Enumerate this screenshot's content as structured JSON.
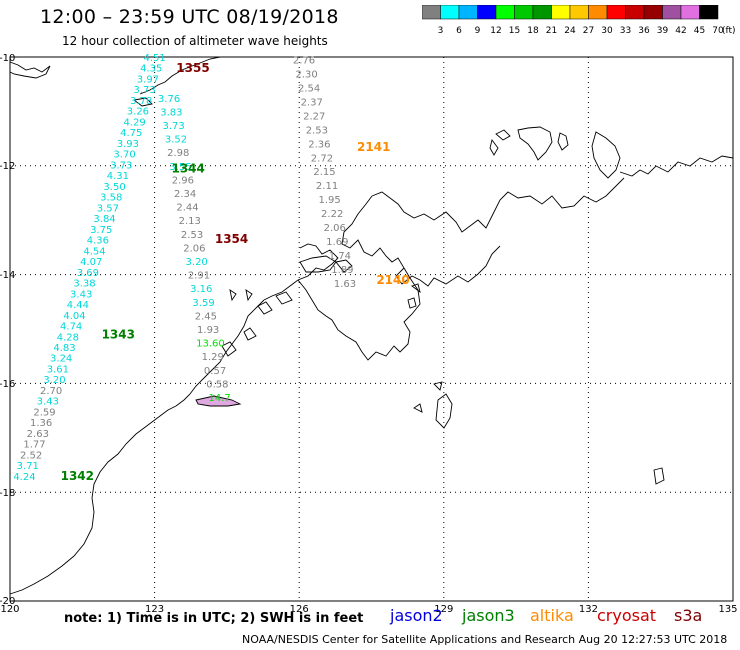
{
  "title": "12:00 – 23:59 UTC 08/19/2018",
  "subtitle": "12 hour collection of altimeter wave heights",
  "colorbar": {
    "bins": [
      {
        "label": "3",
        "color": "#808080"
      },
      {
        "label": "6",
        "color": "#00ffff"
      },
      {
        "label": "9",
        "color": "#00b4ff"
      },
      {
        "label": "12",
        "color": "#0000ff"
      },
      {
        "label": "15",
        "color": "#00ff00"
      },
      {
        "label": "18",
        "color": "#00c800"
      },
      {
        "label": "21",
        "color": "#009600"
      },
      {
        "label": "24",
        "color": "#ffff00"
      },
      {
        "label": "27",
        "color": "#ffc800"
      },
      {
        "label": "30",
        "color": "#ff8c00"
      },
      {
        "label": "33",
        "color": "#ff0000"
      },
      {
        "label": "36",
        "color": "#c80000"
      },
      {
        "label": "39",
        "color": "#960000"
      },
      {
        "label": "42",
        "color": "#a050a0"
      },
      {
        "label": "45",
        "color": "#e070e0"
      },
      {
        "label": "70",
        "color": "#000000"
      }
    ],
    "unit": "(ft)"
  },
  "axes": {
    "lat_ticks": [
      "-10",
      "-12",
      "-14",
      "-16",
      "-18",
      "-20"
    ],
    "lon_ticks": [
      "120",
      "123",
      "126",
      "129",
      "132",
      "135"
    ]
  },
  "note": "note: 1) Time is in UTC; 2) SWH is in feet",
  "satellites": [
    {
      "name": "jason2",
      "color": "#0000dd"
    },
    {
      "name": "jason3",
      "color": "#008000"
    },
    {
      "name": "altika",
      "color": "#ff8c00"
    },
    {
      "name": "cryosat",
      "color": "#cc0000"
    },
    {
      "name": "s3a",
      "color": "#800000"
    }
  ],
  "credit": "NOAA/NESDIS Center for Satellite Applications and Research     Aug 20 12:27:53 UTC 2018",
  "time_labels": [
    {
      "text": "1355",
      "lat": -10.2,
      "lon": 123.45,
      "color": "#800000"
    },
    {
      "text": "1344",
      "lat": -12.05,
      "lon": 123.35,
      "color": "#008000"
    },
    {
      "text": "1354",
      "lat": -13.35,
      "lon": 124.25,
      "color": "#800000"
    },
    {
      "text": "1343",
      "lat": -15.1,
      "lon": 121.9,
      "color": "#008000"
    },
    {
      "text": "1342",
      "lat": -17.7,
      "lon": 121.05,
      "color": "#008000"
    },
    {
      "text": "2141",
      "lat": -11.65,
      "lon": 127.2,
      "color": "#ff8c00"
    },
    {
      "text": "2140",
      "lat": -14.1,
      "lon": 127.6,
      "color": "#ff8c00"
    }
  ],
  "tracks": [
    {
      "name": "jason3-cyan",
      "start": {
        "lat": -10.0,
        "lon": 123.0
      },
      "end": {
        "lat": -17.7,
        "lon": 120.3
      },
      "values": [
        {
          "v": "4.51",
          "c": "#00d8d8"
        },
        {
          "v": "4.35",
          "c": "#00d8d8"
        },
        {
          "v": "3.97",
          "c": "#00d8d8"
        },
        {
          "v": "3.73",
          "c": "#00d8d8"
        },
        {
          "v": "3.78",
          "c": "#00d8d8"
        },
        {
          "v": "3.26",
          "c": "#00d8d8"
        },
        {
          "v": "4.29",
          "c": "#00d8d8"
        },
        {
          "v": "4.75",
          "c": "#00d8d8"
        },
        {
          "v": "3.93",
          "c": "#00d8d8"
        },
        {
          "v": "3.70",
          "c": "#00d8d8"
        },
        {
          "v": "3.73",
          "c": "#00d8d8"
        },
        {
          "v": "4.31",
          "c": "#00d8d8"
        },
        {
          "v": "3.50",
          "c": "#00d8d8"
        },
        {
          "v": "3.58",
          "c": "#00d8d8"
        },
        {
          "v": "3.57",
          "c": "#00d8d8"
        },
        {
          "v": "3.84",
          "c": "#00d8d8"
        },
        {
          "v": "3.75",
          "c": "#00d8d8"
        },
        {
          "v": "4.36",
          "c": "#00d8d8"
        },
        {
          "v": "4.54",
          "c": "#00d8d8"
        },
        {
          "v": "4.07",
          "c": "#00d8d8"
        },
        {
          "v": "3.69",
          "c": "#00d8d8"
        },
        {
          "v": "3.38",
          "c": "#00d8d8"
        },
        {
          "v": "3.43",
          "c": "#00d8d8"
        },
        {
          "v": "4.44",
          "c": "#00d8d8"
        },
        {
          "v": "4.04",
          "c": "#00d8d8"
        },
        {
          "v": "4.74",
          "c": "#00d8d8"
        },
        {
          "v": "4.28",
          "c": "#00d8d8"
        },
        {
          "v": "4.83",
          "c": "#00d8d8"
        },
        {
          "v": "3.24",
          "c": "#00d8d8"
        },
        {
          "v": "3.61",
          "c": "#00d8d8"
        },
        {
          "v": "3.20",
          "c": "#00d8d8"
        },
        {
          "v": "2.70",
          "c": "#808080"
        },
        {
          "v": "3.43",
          "c": "#00d8d8"
        },
        {
          "v": "2.59",
          "c": "#808080"
        },
        {
          "v": "1.36",
          "c": "#808080"
        },
        {
          "v": "2.63",
          "c": "#808080"
        },
        {
          "v": "1.77",
          "c": "#808080"
        },
        {
          "v": "2.52",
          "c": "#808080"
        },
        {
          "v": "3.71",
          "c": "#00d8d8"
        },
        {
          "v": "4.24",
          "c": "#00d8d8"
        }
      ]
    },
    {
      "name": "cryosat-mid",
      "start": {
        "lat": -10.75,
        "lon": 123.3
      },
      "end": {
        "lat": -16.25,
        "lon": 124.35
      },
      "values": [
        {
          "v": "3.76",
          "c": "#00d8d8"
        },
        {
          "v": "3.83",
          "c": "#00d8d8"
        },
        {
          "v": "3.73",
          "c": "#00d8d8"
        },
        {
          "v": "3.52",
          "c": "#00d8d8"
        },
        {
          "v": "2.98",
          "c": "#808080"
        },
        {
          "v": "3.55",
          "c": "#00d8d8"
        },
        {
          "v": "2.96",
          "c": "#808080"
        },
        {
          "v": "2.34",
          "c": "#808080"
        },
        {
          "v": "2.44",
          "c": "#808080"
        },
        {
          "v": "2.13",
          "c": "#808080"
        },
        {
          "v": "2.53",
          "c": "#808080"
        },
        {
          "v": "2.06",
          "c": "#808080"
        },
        {
          "v": "3.20",
          "c": "#00d8d8"
        },
        {
          "v": "2.91",
          "c": "#808080"
        },
        {
          "v": "3.16",
          "c": "#00d8d8"
        },
        {
          "v": "3.59",
          "c": "#00d8d8"
        },
        {
          "v": "2.45",
          "c": "#808080"
        },
        {
          "v": "1.93",
          "c": "#808080"
        },
        {
          "v": "13.60",
          "c": "#00e000"
        },
        {
          "v": "1.29",
          "c": "#808080"
        },
        {
          "v": "0.57",
          "c": "#808080"
        },
        {
          "v": "0.58",
          "c": "#808080"
        },
        {
          "v": "14.7",
          "c": "#00e000"
        }
      ]
    },
    {
      "name": "altika",
      "start": {
        "lat": -10.05,
        "lon": 126.1
      },
      "end": {
        "lat": -14.15,
        "lon": 126.95
      },
      "values": [
        {
          "v": "2.76",
          "c": "#808080"
        },
        {
          "v": "2.30",
          "c": "#808080"
        },
        {
          "v": "2.54",
          "c": "#808080"
        },
        {
          "v": "2.37",
          "c": "#808080"
        },
        {
          "v": "2.27",
          "c": "#808080"
        },
        {
          "v": "2.53",
          "c": "#808080"
        },
        {
          "v": "2.36",
          "c": "#808080"
        },
        {
          "v": "2.72",
          "c": "#808080"
        },
        {
          "v": "2.15",
          "c": "#808080"
        },
        {
          "v": "2.11",
          "c": "#808080"
        },
        {
          "v": "1.95",
          "c": "#808080"
        },
        {
          "v": "2.22",
          "c": "#808080"
        },
        {
          "v": "2.06",
          "c": "#808080"
        },
        {
          "v": "1.69",
          "c": "#808080"
        },
        {
          "v": "1.74",
          "c": "#808080"
        },
        {
          "v": "1.89",
          "c": "#808080"
        },
        {
          "v": "1.63",
          "c": "#808080"
        }
      ]
    }
  ]
}
